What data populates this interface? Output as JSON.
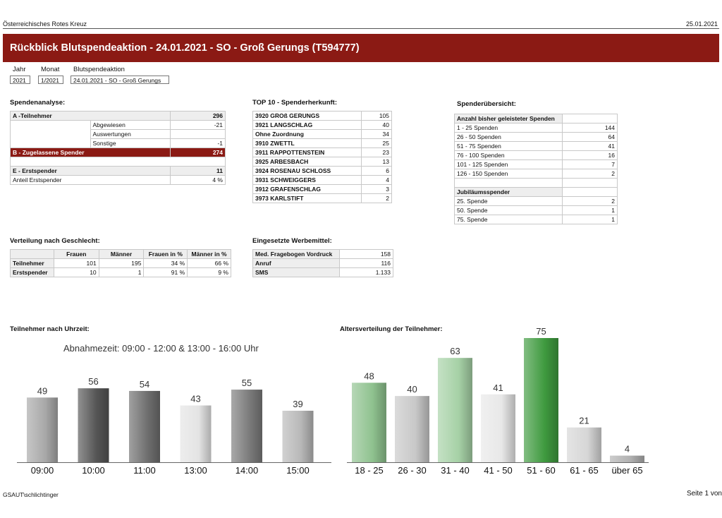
{
  "header": {
    "org": "Österreichisches Rotes Kreuz",
    "date": "25.01.2021"
  },
  "title": "Rückblick Blutspendeaktion - 24.01.2021 - SO - Groß Gerungs (T594777)",
  "filters": {
    "labels": [
      "Jahr",
      "Monat",
      "Blutspendeaktion"
    ],
    "values": [
      "2021",
      "1/2021",
      "24.01.2021 - SO - Groß Gerungs"
    ]
  },
  "spendenanalyse": {
    "title": "Spendenanalyse:",
    "a_label": "A -Teilnehmer",
    "a_value": "296",
    "sub": [
      {
        "label": "Abgewiesen",
        "value": "-21"
      },
      {
        "label": "Auswertungen",
        "value": ""
      },
      {
        "label": "Sonstige",
        "value": "-1"
      }
    ],
    "b_label": "B - Zugelassene Spender",
    "b_value": "274",
    "e_label": "E - Erstspender",
    "e_value": "11",
    "anteil_label": "Anteil Erstspender",
    "anteil_value": "4 %"
  },
  "top10": {
    "title": "TOP 10 - Spenderherkunft:",
    "rows": [
      {
        "name": "3920 GROß GERUNGS",
        "value": "105"
      },
      {
        "name": "3921 LANGSCHLAG",
        "value": "40"
      },
      {
        "name": "Ohne Zuordnung",
        "value": "34"
      },
      {
        "name": "3910 ZWETTL",
        "value": "25"
      },
      {
        "name": "3911 RAPPOTTENSTEIN",
        "value": "23"
      },
      {
        "name": "3925 ARBESBACH",
        "value": "13"
      },
      {
        "name": "3924 ROSENAU SCHLOSS",
        "value": "6"
      },
      {
        "name": "3931 SCHWEIGGERS",
        "value": "4"
      },
      {
        "name": "3912 GRAFENSCHLAG",
        "value": "3"
      },
      {
        "name": "3973 KARLSTIFT",
        "value": "2"
      }
    ]
  },
  "uebersicht": {
    "title": "Spenderübersicht:",
    "anzahl_header": "Anzahl bisher geleisteter Spenden",
    "anzahl": [
      {
        "label": "1 - 25 Spenden",
        "value": "144"
      },
      {
        "label": "26 - 50 Spenden",
        "value": "64"
      },
      {
        "label": "51 - 75 Spenden",
        "value": "41"
      },
      {
        "label": "76 - 100 Spenden",
        "value": "16"
      },
      {
        "label": "101 - 125 Spenden",
        "value": "7"
      },
      {
        "label": "126 - 150 Spenden",
        "value": "2"
      }
    ],
    "jubi_header": "Jubiläumsspender",
    "jubi": [
      {
        "label": "25. Spende",
        "value": "2"
      },
      {
        "label": "50. Spende",
        "value": "1"
      },
      {
        "label": "75. Spende",
        "value": "1"
      }
    ]
  },
  "geschlecht": {
    "title": "Verteilung nach Geschlecht:",
    "headers": [
      "Frauen",
      "Männer",
      "Frauen in %",
      "Männer in %"
    ],
    "rows": [
      {
        "label": "Teilnehmer",
        "values": [
          "101",
          "195",
          "34 %",
          "66 %"
        ]
      },
      {
        "label": "Erstspender",
        "values": [
          "10",
          "1",
          "91 %",
          "9 %"
        ]
      }
    ]
  },
  "werbemittel": {
    "title": "Eingesetzte Werbemittel:",
    "rows": [
      {
        "label": "Med. Fragebogen Vordruck",
        "value": "158"
      },
      {
        "label": "Anruf",
        "value": "116"
      },
      {
        "label": "SMS",
        "value": "1.133"
      }
    ]
  },
  "chart_data": [
    {
      "type": "bar",
      "title": "Teilnehmer nach Uhrzeit:",
      "annotation": "Abnahmezeit: 09:00 - 12:00 & 13:00 - 16:00 Uhr",
      "categories": [
        "09:00",
        "10:00",
        "11:00",
        "13:00",
        "14:00",
        "15:00"
      ],
      "values": [
        49,
        56,
        54,
        43,
        55,
        39
      ],
      "ylim": [
        0,
        70
      ],
      "colors": [
        "#a8a8a8",
        "#555555",
        "#6e6e6e",
        "#e4e4e4",
        "#7a7a7a",
        "#b8b8b8"
      ]
    },
    {
      "type": "bar",
      "title": "Altersverteilung der Teilnehmer:",
      "categories": [
        "18 - 25",
        "26 - 30",
        "31 - 40",
        "41 - 50",
        "51 - 60",
        "61 - 65",
        "über 65"
      ],
      "values": [
        48,
        40,
        63,
        41,
        75,
        21,
        4
      ],
      "ylim": [
        0,
        75
      ],
      "colors": [
        "#8fc28f",
        "#c8c8c8",
        "#a6d1a6",
        "#e8e8e8",
        "#3f9a3f",
        "#d6d6d6",
        "#b0b0b0"
      ]
    }
  ],
  "footer": {
    "user": "GSAUT\\schlichtinger",
    "page": "Seite 1 von"
  }
}
